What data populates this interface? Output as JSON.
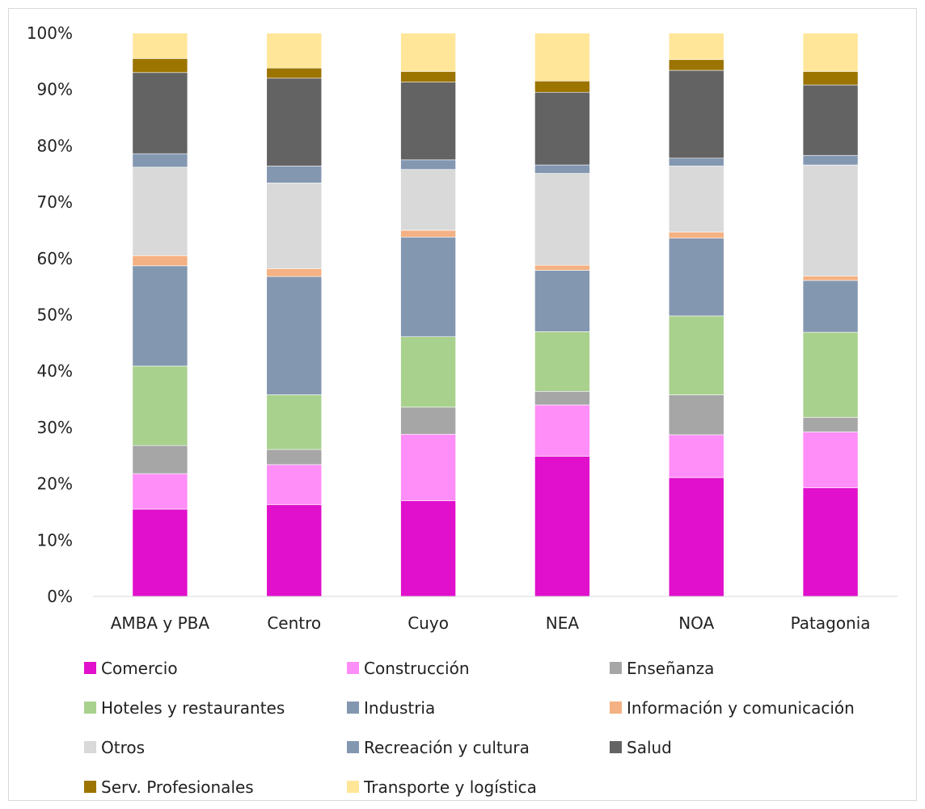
{
  "chart_data": {
    "type": "bar",
    "stacked": true,
    "percent": true,
    "categories": [
      "AMBA y PBA",
      "Centro",
      "Cuyo",
      "NEA",
      "NOA",
      "Patagonia"
    ],
    "y_ticks": [
      "0%",
      "10%",
      "20%",
      "30%",
      "40%",
      "50%",
      "60%",
      "70%",
      "80%",
      "90%",
      "100%"
    ],
    "ylim": [
      0,
      100
    ],
    "grid": false,
    "legend_position": "bottom",
    "series": [
      {
        "name": "Comercio",
        "color": "#e010cc",
        "values": [
          15.5,
          16.3,
          17.0,
          24.9,
          21.1,
          19.3
        ]
      },
      {
        "name": "Construcción",
        "color": "#ff8ef8",
        "values": [
          6.3,
          7.1,
          11.8,
          9.1,
          7.6,
          9.9
        ]
      },
      {
        "name": "Enseñanza",
        "color": "#a6a6a6",
        "values": [
          5.0,
          2.7,
          4.8,
          2.4,
          7.1,
          2.6
        ]
      },
      {
        "name": "Hoteles y restaurantes",
        "color": "#a9d18e",
        "values": [
          14.1,
          9.7,
          12.5,
          10.6,
          14.0,
          15.1
        ]
      },
      {
        "name": "Industria",
        "color": "#8497b0",
        "values": [
          17.8,
          21.0,
          17.7,
          10.9,
          13.8,
          9.2
        ]
      },
      {
        "name": "Información y comunicación",
        "color": "#f4b183",
        "values": [
          1.8,
          1.4,
          1.2,
          0.9,
          1.1,
          0.8
        ]
      },
      {
        "name": "Otros",
        "color": "#d9d9d9",
        "values": [
          15.7,
          15.2,
          10.8,
          16.3,
          11.7,
          19.7
        ]
      },
      {
        "name": "Recreación y cultura",
        "color": "#8497b0",
        "values": [
          2.4,
          3.0,
          1.7,
          1.5,
          1.4,
          1.7
        ]
      },
      {
        "name": "Salud",
        "color": "#636363",
        "values": [
          14.4,
          15.6,
          13.8,
          12.9,
          15.6,
          12.5
        ]
      },
      {
        "name": "Serv. Profesionales",
        "color": "#9c7400",
        "values": [
          2.5,
          1.8,
          1.9,
          2.0,
          1.9,
          2.4
        ]
      },
      {
        "name": "Transporte y logística",
        "color": "#ffe699",
        "values": [
          4.5,
          6.2,
          6.8,
          8.5,
          4.7,
          6.8
        ]
      }
    ]
  }
}
